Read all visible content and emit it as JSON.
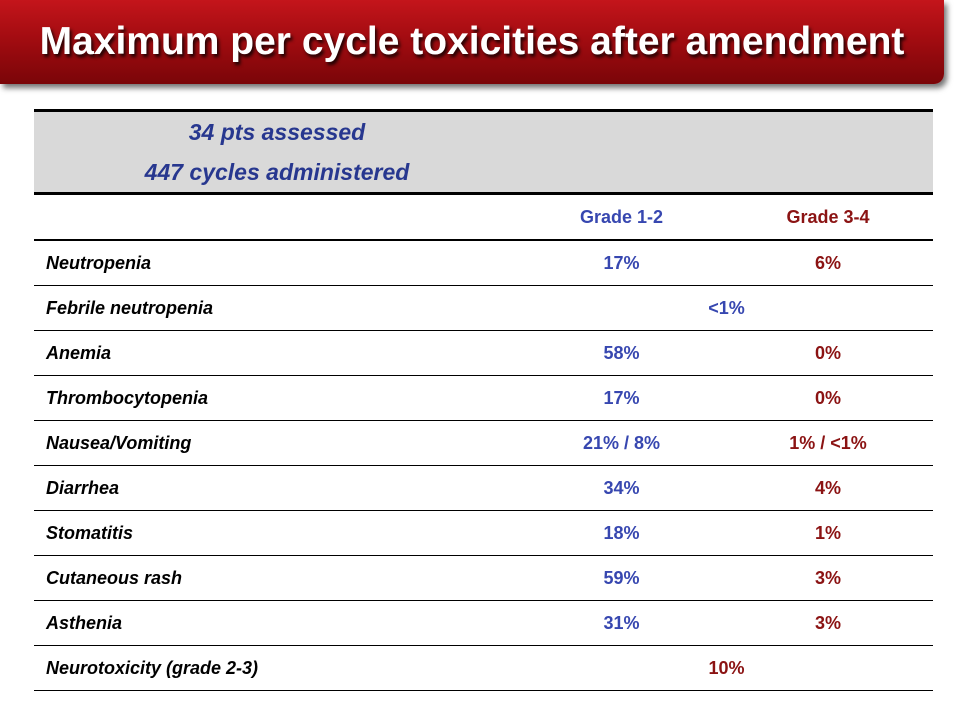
{
  "title": "Maximum per cycle toxicities after amendment",
  "assessed": {
    "line1": "34 pts assessed",
    "line2": "447 cycles administered"
  },
  "columns": {
    "grade12": "Grade 1-2",
    "grade34": "Grade 3-4"
  },
  "colors": {
    "title_bar": "#a30c11",
    "grade12_text": "#3747b0",
    "grade34_text": "#8b1313",
    "header_fill": "#d9d9d9"
  },
  "rows": [
    {
      "name": "Neutropenia",
      "g12": "17%",
      "g34": "6%"
    },
    {
      "name": "Febrile neutropenia",
      "merged": "<1%"
    },
    {
      "name": "Anemia",
      "g12": "58%",
      "g34": "0%"
    },
    {
      "name": "Thrombocytopenia",
      "g12": "17%",
      "g34": "0%"
    },
    {
      "name": "Nausea/Vomiting",
      "g12": "21% / 8%",
      "g34": "1% / <1%"
    },
    {
      "name": "Diarrhea",
      "g12": "34%",
      "g34": "4%"
    },
    {
      "name": "Stomatitis",
      "g12": "18%",
      "g34": "1%"
    },
    {
      "name": "Cutaneous rash",
      "g12": "59%",
      "g34": "3%"
    },
    {
      "name": "Asthenia",
      "g12": "31%",
      "g34": "3%"
    },
    {
      "name": "Neurotoxicity (grade 2-3)",
      "merged": "10%"
    }
  ]
}
